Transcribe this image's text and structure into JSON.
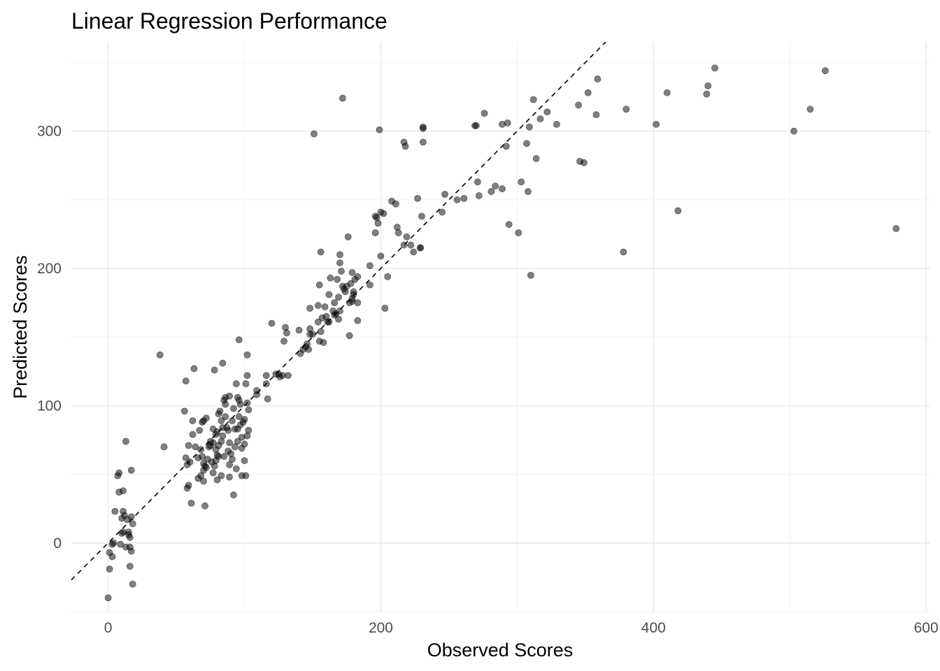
{
  "chart_data": {
    "type": "scatter",
    "title": "Linear Regression Performance",
    "xlabel": "Observed Scores",
    "ylabel": "Predicted Scores",
    "xlim": [
      -27,
      603
    ],
    "ylim": [
      -50,
      365
    ],
    "xticks": [
      0,
      200,
      400,
      600
    ],
    "xtick_labels": [
      "0",
      "200",
      "400",
      "600"
    ],
    "yticks": [
      0,
      100,
      200,
      300
    ],
    "ytick_labels": [
      "0",
      "100",
      "200",
      "300"
    ],
    "grid": true,
    "legend": "none",
    "point_color": "#000000",
    "reference_line": {
      "type": "y=x",
      "style": "dashed",
      "color": "#000000"
    },
    "series": [
      {
        "points": [
          [
            0,
            -40
          ],
          [
            1,
            -19
          ],
          [
            1,
            -7
          ],
          [
            3,
            -10
          ],
          [
            3,
            -1
          ],
          [
            4,
            0
          ],
          [
            5,
            23
          ],
          [
            7,
            49
          ],
          [
            8,
            37
          ],
          [
            8,
            51
          ],
          [
            9,
            -1
          ],
          [
            10,
            7
          ],
          [
            10,
            18
          ],
          [
            11,
            8
          ],
          [
            11,
            23
          ],
          [
            11,
            38
          ],
          [
            12,
            20
          ],
          [
            13,
            74
          ],
          [
            13,
            -3
          ],
          [
            14,
            17
          ],
          [
            15,
            8
          ],
          [
            15,
            6
          ],
          [
            16,
            4
          ],
          [
            16,
            -3
          ],
          [
            16,
            -17
          ],
          [
            17,
            -6
          ],
          [
            17,
            53
          ],
          [
            17,
            19
          ],
          [
            18,
            14
          ],
          [
            18,
            -30
          ],
          [
            38,
            137
          ],
          [
            41,
            70
          ],
          [
            56,
            96
          ],
          [
            57,
            62
          ],
          [
            57,
            118
          ],
          [
            58,
            57
          ],
          [
            58,
            40
          ],
          [
            59,
            42
          ],
          [
            59,
            71
          ],
          [
            60,
            59
          ],
          [
            61,
            29
          ],
          [
            62,
            89
          ],
          [
            62,
            79
          ],
          [
            63,
            127
          ],
          [
            64,
            70
          ],
          [
            66,
            62
          ],
          [
            66,
            47
          ],
          [
            67,
            82
          ],
          [
            68,
            68
          ],
          [
            68,
            49
          ],
          [
            69,
            63
          ],
          [
            69,
            88
          ],
          [
            70,
            58
          ],
          [
            70,
            53
          ],
          [
            70,
            45
          ],
          [
            70,
            89
          ],
          [
            71,
            27
          ],
          [
            71,
            56
          ],
          [
            72,
            55
          ],
          [
            72,
            91
          ],
          [
            73,
            61
          ],
          [
            74,
            70
          ],
          [
            75,
            74
          ],
          [
            75,
            71
          ],
          [
            76,
            59
          ],
          [
            77,
            83
          ],
          [
            77,
            73
          ],
          [
            77,
            51
          ],
          [
            78,
            126
          ],
          [
            78,
            56
          ],
          [
            79,
            60
          ],
          [
            79,
            68
          ],
          [
            79,
            79
          ],
          [
            80,
            81
          ],
          [
            80,
            64
          ],
          [
            80,
            46
          ],
          [
            81,
            94
          ],
          [
            81,
            71
          ],
          [
            81,
            63
          ],
          [
            82,
            96
          ],
          [
            83,
            74
          ],
          [
            83,
            89
          ],
          [
            83,
            49
          ],
          [
            84,
            131
          ],
          [
            84,
            78
          ],
          [
            84,
            84
          ],
          [
            85,
            63
          ],
          [
            85,
            104
          ],
          [
            86,
            106
          ],
          [
            86,
            101
          ],
          [
            86,
            92
          ],
          [
            87,
            84
          ],
          [
            88,
            67
          ],
          [
            88,
            82
          ],
          [
            89,
            107
          ],
          [
            89,
            73
          ],
          [
            89,
            57
          ],
          [
            89,
            48
          ],
          [
            90,
            65
          ],
          [
            91,
            89
          ],
          [
            91,
            61
          ],
          [
            92,
            98
          ],
          [
            92,
            35
          ],
          [
            93,
            83
          ],
          [
            93,
            70
          ],
          [
            94,
            116
          ],
          [
            94,
            54
          ],
          [
            95,
            106
          ],
          [
            95,
            83
          ],
          [
            95,
            74
          ],
          [
            96,
            104
          ],
          [
            96,
            148
          ],
          [
            96,
            92
          ],
          [
            97,
            86
          ],
          [
            97,
            101
          ],
          [
            98,
            77
          ],
          [
            98,
            69
          ],
          [
            98,
            49
          ],
          [
            99,
            88
          ],
          [
            100,
            72
          ],
          [
            100,
            90
          ],
          [
            100,
            60
          ],
          [
            101,
            49
          ],
          [
            101,
            116
          ],
          [
            102,
            137
          ],
          [
            102,
            122
          ],
          [
            102,
            78
          ],
          [
            102,
            102
          ],
          [
            103,
            82
          ],
          [
            103,
            97
          ],
          [
            109,
            111
          ],
          [
            109,
            108
          ],
          [
            116,
            116
          ],
          [
            116,
            122
          ],
          [
            117,
            105
          ],
          [
            120,
            160
          ],
          [
            123,
            123
          ],
          [
            125,
            123
          ],
          [
            126,
            121
          ],
          [
            128,
            122
          ],
          [
            129,
            147
          ],
          [
            130,
            157
          ],
          [
            131,
            153
          ],
          [
            132,
            122
          ],
          [
            140,
            155
          ],
          [
            141,
            138
          ],
          [
            143,
            141
          ],
          [
            145,
            143
          ],
          [
            146,
            145
          ],
          [
            147,
            141
          ],
          [
            148,
            156
          ],
          [
            148,
            152
          ],
          [
            148,
            171
          ],
          [
            150,
            152
          ],
          [
            151,
            298
          ],
          [
            154,
            173
          ],
          [
            154,
            161
          ],
          [
            155,
            147
          ],
          [
            155,
            188
          ],
          [
            156,
            212
          ],
          [
            156,
            154
          ],
          [
            157,
            164
          ],
          [
            158,
            146
          ],
          [
            159,
            172
          ],
          [
            160,
            165
          ],
          [
            161,
            161
          ],
          [
            162,
            161
          ],
          [
            162,
            181
          ],
          [
            163,
            193
          ],
          [
            165,
            169
          ],
          [
            166,
            175
          ],
          [
            166,
            166
          ],
          [
            167,
            167
          ],
          [
            168,
            192
          ],
          [
            169,
            179
          ],
          [
            169,
            163
          ],
          [
            170,
            210
          ],
          [
            170,
            204
          ],
          [
            170,
            169
          ],
          [
            171,
            198
          ],
          [
            172,
            324
          ],
          [
            172,
            187
          ],
          [
            173,
            185
          ],
          [
            174,
            183
          ],
          [
            175,
            187
          ],
          [
            176,
            223
          ],
          [
            177,
            175
          ],
          [
            177,
            151
          ],
          [
            178,
            189
          ],
          [
            179,
            178
          ],
          [
            179,
            176
          ],
          [
            179,
            197
          ],
          [
            180,
            181
          ],
          [
            180,
            183
          ],
          [
            181,
            192
          ],
          [
            183,
            194
          ],
          [
            183,
            175
          ],
          [
            183,
            162
          ],
          [
            192,
            202
          ],
          [
            192,
            188
          ],
          [
            196,
            238
          ],
          [
            196,
            226
          ],
          [
            197,
            237
          ],
          [
            198,
            233
          ],
          [
            199,
            301
          ],
          [
            200,
            241
          ],
          [
            200,
            209
          ],
          [
            202,
            240
          ],
          [
            203,
            171
          ],
          [
            205,
            194
          ],
          [
            208,
            249
          ],
          [
            211,
            247
          ],
          [
            212,
            230
          ],
          [
            213,
            226
          ],
          [
            217,
            217
          ],
          [
            217,
            292
          ],
          [
            218,
            289
          ],
          [
            219,
            223
          ],
          [
            222,
            217
          ],
          [
            224,
            212
          ],
          [
            227,
            251
          ],
          [
            229,
            215
          ],
          [
            229,
            215
          ],
          [
            230,
            238
          ],
          [
            231,
            302
          ],
          [
            231,
            303
          ],
          [
            231,
            292
          ],
          [
            245,
            241
          ],
          [
            247,
            254
          ],
          [
            256,
            250
          ],
          [
            261,
            251
          ],
          [
            269,
            304
          ],
          [
            270,
            304
          ],
          [
            271,
            263
          ],
          [
            272,
            253
          ],
          [
            276,
            313
          ],
          [
            281,
            256
          ],
          [
            284,
            260
          ],
          [
            289,
            258
          ],
          [
            289,
            305
          ],
          [
            292,
            289
          ],
          [
            293,
            306
          ],
          [
            294,
            232
          ],
          [
            301,
            226
          ],
          [
            303,
            263
          ],
          [
            307,
            291
          ],
          [
            308,
            256
          ],
          [
            310,
            195
          ],
          [
            309,
            303
          ],
          [
            312,
            323
          ],
          [
            314,
            280
          ],
          [
            317,
            309
          ],
          [
            322,
            314
          ],
          [
            329,
            305
          ],
          [
            345,
            319
          ],
          [
            346,
            278
          ],
          [
            349,
            277
          ],
          [
            352,
            328
          ],
          [
            358,
            312
          ],
          [
            359,
            338
          ],
          [
            378,
            212
          ],
          [
            380,
            316
          ],
          [
            402,
            305
          ],
          [
            410,
            328
          ],
          [
            418,
            242
          ],
          [
            439,
            327
          ],
          [
            440,
            333
          ],
          [
            445,
            346
          ],
          [
            503,
            300
          ],
          [
            515,
            316
          ],
          [
            526,
            344
          ],
          [
            578,
            229
          ]
        ]
      }
    ]
  }
}
